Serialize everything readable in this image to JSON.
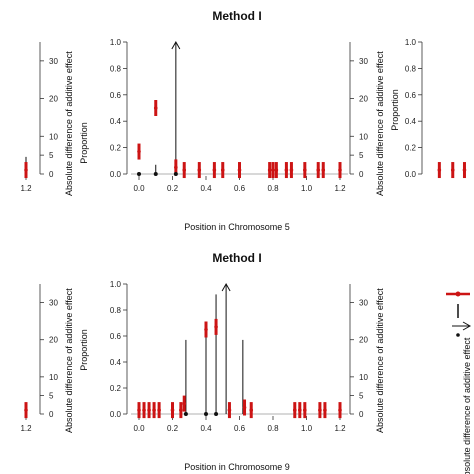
{
  "chart_data": [
    {
      "type": "scatter",
      "panel": "left-partial",
      "x_ticks": [
        "1.2"
      ],
      "y_right_label": "Absolute difference of additive effect",
      "y_right_ticks": [
        "0",
        "5",
        "10",
        "20",
        "30"
      ],
      "red_points": [
        {
          "x": 1.2,
          "p": 0.03
        }
      ],
      "black_lines": [
        {
          "x": 1.2,
          "p": 0.13
        }
      ]
    },
    {
      "type": "scatter",
      "panel": "top-center",
      "title": "Method I",
      "xlabel": "Position in Chromosome 5",
      "ylabel": "Proportion",
      "y_right_label": "Absolute difference of additive effect",
      "xlim": [
        0,
        1.2
      ],
      "ylim": [
        0,
        1
      ],
      "x_ticks": [
        "0.0",
        "0.2",
        "0.4",
        "0.6",
        "0.8",
        "1.0",
        "1.2"
      ],
      "y_ticks": [
        "0.0",
        "0.2",
        "0.4",
        "0.6",
        "0.8",
        "1.0"
      ],
      "y_right_ticks": [
        "0",
        "5",
        "10",
        "20",
        "30"
      ],
      "arrow": {
        "x": 0.22,
        "p": 1.0
      },
      "black_lines": [
        {
          "x": 0.1,
          "p": 0.07
        }
      ],
      "black_dots": [
        0.0,
        0.1,
        0.22
      ],
      "red_points": [
        {
          "x": 0.0,
          "p": 0.17
        },
        {
          "x": 0.1,
          "p": 0.5
        },
        {
          "x": 0.22,
          "p": 0.05
        },
        {
          "x": 0.27,
          "p": 0.03
        },
        {
          "x": 0.36,
          "p": 0.03
        },
        {
          "x": 0.45,
          "p": 0.03
        },
        {
          "x": 0.5,
          "p": 0.03
        },
        {
          "x": 0.6,
          "p": 0.03
        },
        {
          "x": 0.78,
          "p": 0.03
        },
        {
          "x": 0.8,
          "p": 0.03
        },
        {
          "x": 0.82,
          "p": 0.03
        },
        {
          "x": 0.88,
          "p": 0.03
        },
        {
          "x": 0.91,
          "p": 0.03
        },
        {
          "x": 0.99,
          "p": 0.03
        },
        {
          "x": 1.07,
          "p": 0.03
        },
        {
          "x": 1.1,
          "p": 0.03
        },
        {
          "x": 1.2,
          "p": 0.03
        }
      ]
    },
    {
      "type": "scatter",
      "panel": "right-partial-top",
      "ylabel": "Proportion",
      "y_ticks": [
        "0.0",
        "0.2",
        "0.4",
        "0.6",
        "0.8",
        "1.0"
      ],
      "red_points": [
        {
          "x": 0.02,
          "p": 0.03
        },
        {
          "x": 0.1,
          "p": 0.03
        },
        {
          "x": 0.17,
          "p": 0.03
        }
      ]
    },
    {
      "type": "scatter",
      "panel": "left-partial-bottom",
      "x_ticks": [
        "1.2"
      ],
      "y_right_label": "Absolute difference of additive effect",
      "y_right_ticks": [
        "0",
        "5",
        "10",
        "20",
        "30"
      ],
      "red_points": [
        {
          "x": 1.2,
          "p": 0.03
        }
      ]
    },
    {
      "type": "scatter",
      "panel": "bottom-center",
      "title": "Method I",
      "xlabel": "Position in Chromosome 9",
      "ylabel": "Proportion",
      "y_right_label": "Absolute difference of additive effect",
      "xlim": [
        0,
        1.2
      ],
      "ylim": [
        0,
        1
      ],
      "x_ticks": [
        "0.0",
        "0.2",
        "0.4",
        "0.6",
        "0.8",
        "1.0",
        "1.2"
      ],
      "y_ticks": [
        "0.0",
        "0.2",
        "0.4",
        "0.6",
        "0.8",
        "1.0"
      ],
      "y_right_ticks": [
        "0",
        "5",
        "10",
        "20",
        "30"
      ],
      "arrow": {
        "x": 0.52,
        "p": 1.0
      },
      "black_lines": [
        {
          "x": 0.28,
          "p": 0.57
        },
        {
          "x": 0.4,
          "p": 0.7
        },
        {
          "x": 0.46,
          "p": 0.92
        },
        {
          "x": 0.62,
          "p": 0.57
        }
      ],
      "black_dots": [
        0.28,
        0.4,
        0.46
      ],
      "red_points": [
        {
          "x": 0.0,
          "p": 0.03
        },
        {
          "x": 0.03,
          "p": 0.03
        },
        {
          "x": 0.06,
          "p": 0.03
        },
        {
          "x": 0.09,
          "p": 0.03
        },
        {
          "x": 0.12,
          "p": 0.03
        },
        {
          "x": 0.2,
          "p": 0.03
        },
        {
          "x": 0.25,
          "p": 0.03
        },
        {
          "x": 0.27,
          "p": 0.08
        },
        {
          "x": 0.4,
          "p": 0.65
        },
        {
          "x": 0.46,
          "p": 0.67
        },
        {
          "x": 0.54,
          "p": 0.03
        },
        {
          "x": 0.63,
          "p": 0.05
        },
        {
          "x": 0.67,
          "p": 0.03
        },
        {
          "x": 0.93,
          "p": 0.03
        },
        {
          "x": 0.96,
          "p": 0.03
        },
        {
          "x": 0.99,
          "p": 0.03
        },
        {
          "x": 1.08,
          "p": 0.03
        },
        {
          "x": 1.11,
          "p": 0.03
        },
        {
          "x": 1.2,
          "p": 0.03
        }
      ]
    },
    {
      "type": "scatter",
      "panel": "right-partial-bottom",
      "y_right_label": "Absolute difference of additive effect"
    }
  ],
  "legend": {
    "placement": "right",
    "symbols": [
      "red-line-with-point",
      "black-vertical-line",
      "arrow",
      "black-dot"
    ]
  },
  "colors": {
    "red": "#cc1414",
    "black": "#111111",
    "axis": "#333333",
    "baseline": "#999999"
  }
}
